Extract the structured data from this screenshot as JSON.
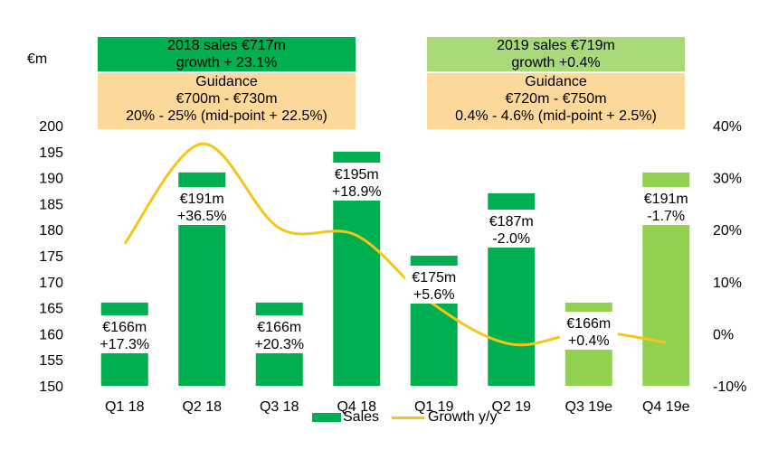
{
  "unit_label": "€m",
  "summary_boxes": [
    {
      "sales_line1": "2018 sales €717m",
      "sales_line2": "growth + 23.1%",
      "sales_color": "#00b050",
      "guidance_title": "Guidance",
      "guidance_range": "€700m - €730m",
      "guidance_growth": "20% - 25% (mid-point + 22.5%)"
    },
    {
      "sales_line1": "2019 sales €719m",
      "sales_line2": "growth +0.4%",
      "sales_color": "#a9d979",
      "guidance_title": "Guidance",
      "guidance_range": "€720m - €750m",
      "guidance_growth": "0.4% - 4.6% (mid-point + 2.5%)"
    }
  ],
  "chart_data": {
    "type": "bar",
    "categories": [
      "Q1 18",
      "Q2 18",
      "Q3 18",
      "Q4 18",
      "Q1 19",
      "Q2 19",
      "Q3 19e",
      "Q4 19e"
    ],
    "series": [
      {
        "name": "Sales",
        "axis": "left",
        "values": [
          166,
          191,
          166,
          195,
          175,
          187,
          166,
          191
        ],
        "colors": [
          "#00b050",
          "#00b050",
          "#00b050",
          "#00b050",
          "#00b050",
          "#00b050",
          "#92d050",
          "#92d050"
        ]
      },
      {
        "name": "Growth y/y",
        "type": "line",
        "axis": "right",
        "values": [
          17.3,
          36.5,
          20.3,
          18.9,
          5.6,
          -2.0,
          0.4,
          -1.7
        ],
        "color": "#f5c518"
      }
    ],
    "data_labels": [
      [
        "€166m",
        "+17.3%"
      ],
      [
        "€191m",
        "+36.5%"
      ],
      [
        "€166m",
        "+20.3%"
      ],
      [
        "€195m",
        "+18.9%"
      ],
      [
        "€175m",
        "+5.6%"
      ],
      [
        "€187m",
        "-2.0%"
      ],
      [
        "€166m",
        "+0.4%"
      ],
      [
        "€191m",
        "-1.7%"
      ]
    ],
    "y_left": {
      "min": 150,
      "max": 200,
      "ticks": [
        150,
        155,
        160,
        165,
        170,
        175,
        180,
        185,
        190,
        195,
        200
      ]
    },
    "y_right": {
      "min": -10,
      "max": 40,
      "ticks": [
        "-10%",
        "0%",
        "10%",
        "20%",
        "30%",
        "40%"
      ],
      "tick_values": [
        -10,
        0,
        10,
        20,
        30,
        40
      ]
    },
    "legend": [
      "Sales",
      "Growth y/y"
    ],
    "legend_position": "bottom",
    "grid": false
  }
}
